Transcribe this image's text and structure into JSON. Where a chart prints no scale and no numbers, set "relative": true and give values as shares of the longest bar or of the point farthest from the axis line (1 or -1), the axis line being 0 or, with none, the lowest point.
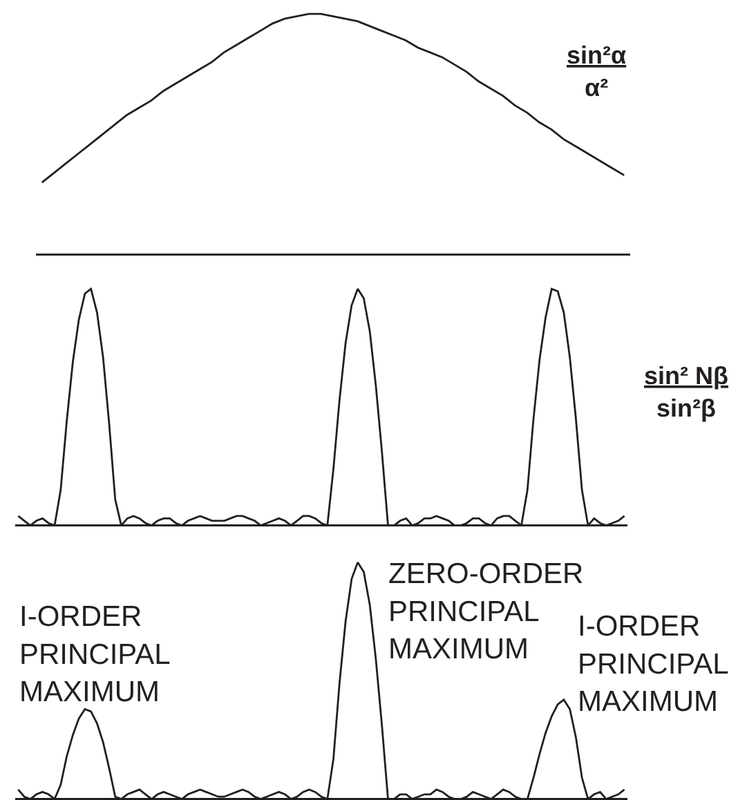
{
  "chart_data": [
    {
      "type": "line",
      "relative": true,
      "categories": [
        null,
        null,
        null,
        null,
        null,
        null,
        null,
        null,
        null,
        null,
        null,
        null,
        null,
        null,
        null,
        null,
        null,
        null,
        null,
        null,
        null,
        null,
        null,
        null,
        null,
        null,
        null,
        null,
        null,
        null,
        null,
        null,
        null,
        null,
        null,
        null,
        null,
        null,
        null,
        null,
        null,
        null,
        null,
        null,
        null,
        null,
        null,
        null,
        null
      ],
      "series": [
        {
          "name": "sin²α\nα²",
          "color": "#231f20",
          "values": [
            0.3,
            0.34,
            0.38,
            0.42,
            0.46,
            0.5,
            0.54,
            0.58,
            0.61,
            0.64,
            0.68,
            0.71,
            0.74,
            0.77,
            0.8,
            0.84,
            0.87,
            0.9,
            0.93,
            0.96,
            0.98,
            0.99,
            1.0,
            1.0,
            0.99,
            0.98,
            0.97,
            0.95,
            0.93,
            0.91,
            0.89,
            0.86,
            0.84,
            0.82,
            0.79,
            0.76,
            0.72,
            0.69,
            0.66,
            0.62,
            0.59,
            0.55,
            0.52,
            0.48,
            0.45,
            0.42,
            0.39,
            0.36,
            0.33
          ]
        }
      ]
    },
    {
      "type": "line",
      "relative": true,
      "categories": [
        null,
        null,
        null,
        null,
        null,
        null,
        null,
        null,
        null,
        null,
        null,
        null,
        null,
        null,
        null,
        null,
        null,
        null,
        null,
        null,
        null,
        null,
        null,
        null,
        null,
        null,
        null,
        null,
        null,
        null,
        null,
        null,
        null,
        null,
        null,
        null,
        null,
        null,
        null,
        null,
        null,
        null,
        null,
        null,
        null,
        null,
        null,
        null,
        null,
        null,
        null,
        null,
        null,
        null,
        null,
        null,
        null,
        null,
        null,
        null,
        null,
        null,
        null,
        null,
        null,
        null,
        null,
        null,
        null,
        null,
        null,
        null,
        null,
        null,
        null,
        null,
        null,
        null,
        null,
        null,
        null,
        null,
        null,
        null,
        null,
        null,
        null,
        null,
        null,
        null,
        null,
        null,
        null,
        null,
        null,
        null,
        null,
        null,
        null,
        null,
        null
      ],
      "series": [
        {
          "name": "sin² Nβ\nsin²β",
          "color": "#231f20",
          "values": [
            0.04,
            0.02,
            0.0,
            0.02,
            0.03,
            0.01,
            0.0,
            0.15,
            0.44,
            0.69,
            0.87,
            0.98,
            1.0,
            0.9,
            0.71,
            0.43,
            0.11,
            0.0,
            0.03,
            0.04,
            0.03,
            0.01,
            0.0,
            0.02,
            0.03,
            0.03,
            0.01,
            0.0,
            0.02,
            0.03,
            0.04,
            0.03,
            0.02,
            0.02,
            0.02,
            0.03,
            0.04,
            0.04,
            0.03,
            0.02,
            0.0,
            0.01,
            0.02,
            0.03,
            0.02,
            0.0,
            0.02,
            0.04,
            0.04,
            0.03,
            0.01,
            0.0,
            0.24,
            0.53,
            0.77,
            0.93,
            1.0,
            0.96,
            0.82,
            0.59,
            0.31,
            0.0,
            0.0,
            0.02,
            0.03,
            0.0,
            0.01,
            0.03,
            0.03,
            0.04,
            0.03,
            0.02,
            0.0,
            0.0,
            0.01,
            0.03,
            0.03,
            0.01,
            0.0,
            0.03,
            0.04,
            0.04,
            0.02,
            0.0,
            0.15,
            0.45,
            0.7,
            0.88,
            1.0,
            0.99,
            0.9,
            0.71,
            0.45,
            0.15,
            0.0,
            0.03,
            0.01,
            0.0,
            0.01,
            0.02,
            0.04
          ]
        }
      ]
    },
    {
      "type": "line",
      "relative": true,
      "categories": [
        null,
        null,
        null,
        null,
        null,
        null,
        null,
        null,
        null,
        null,
        null,
        null,
        null,
        null,
        null,
        null,
        null,
        null,
        null,
        null,
        null,
        null,
        null,
        null,
        null,
        null,
        null,
        null,
        null,
        null,
        null,
        null,
        null,
        null,
        null,
        null,
        null,
        null,
        null,
        null,
        null,
        null,
        null,
        null,
        null,
        null,
        null,
        null,
        null,
        null,
        null,
        null,
        null,
        null,
        null,
        null,
        null,
        null,
        null,
        null,
        null,
        null,
        null,
        null,
        null,
        null,
        null,
        null,
        null,
        null,
        null,
        null,
        null,
        null,
        null,
        null,
        null,
        null,
        null,
        null,
        null,
        null,
        null,
        null,
        null,
        null,
        null,
        null,
        null,
        null,
        null,
        null,
        null,
        null,
        null,
        null,
        null,
        null,
        null,
        null,
        null
      ],
      "series": [
        {
          "color": "#231f20",
          "values": [
            0.04,
            0.01,
            0.0,
            0.02,
            0.03,
            0.02,
            0.0,
            0.06,
            0.18,
            0.27,
            0.34,
            0.38,
            0.37,
            0.32,
            0.24,
            0.13,
            0.01,
            0.0,
            0.02,
            0.03,
            0.04,
            0.02,
            0.0,
            0.02,
            0.03,
            0.02,
            0.01,
            0.0,
            0.02,
            0.03,
            0.04,
            0.03,
            0.02,
            0.01,
            0.01,
            0.02,
            0.03,
            0.04,
            0.03,
            0.01,
            0.0,
            0.01,
            0.02,
            0.03,
            0.02,
            0.0,
            0.01,
            0.03,
            0.04,
            0.03,
            0.01,
            0.0,
            0.17,
            0.49,
            0.75,
            0.93,
            1.0,
            0.96,
            0.82,
            0.59,
            0.31,
            0.0,
            0.0,
            0.02,
            0.02,
            0.0,
            0.01,
            0.02,
            0.02,
            0.04,
            0.03,
            0.01,
            0.0,
            0.0,
            0.01,
            0.03,
            0.02,
            0.01,
            0.0,
            0.02,
            0.04,
            0.03,
            0.01,
            0.0,
            0.0,
            0.09,
            0.19,
            0.28,
            0.35,
            0.4,
            0.42,
            0.38,
            0.26,
            0.09,
            0.0,
            0.02,
            0.03,
            0.0,
            0.01,
            0.02,
            0.04
          ]
        }
      ],
      "annotations": [
        "I-ORDER PRINCIPAL MAXIMUM",
        "ZERO-ORDER PRINCIPAL MAXIMUM",
        "I-ORDER PRINCIPAL MAXIMUM"
      ]
    }
  ]
}
